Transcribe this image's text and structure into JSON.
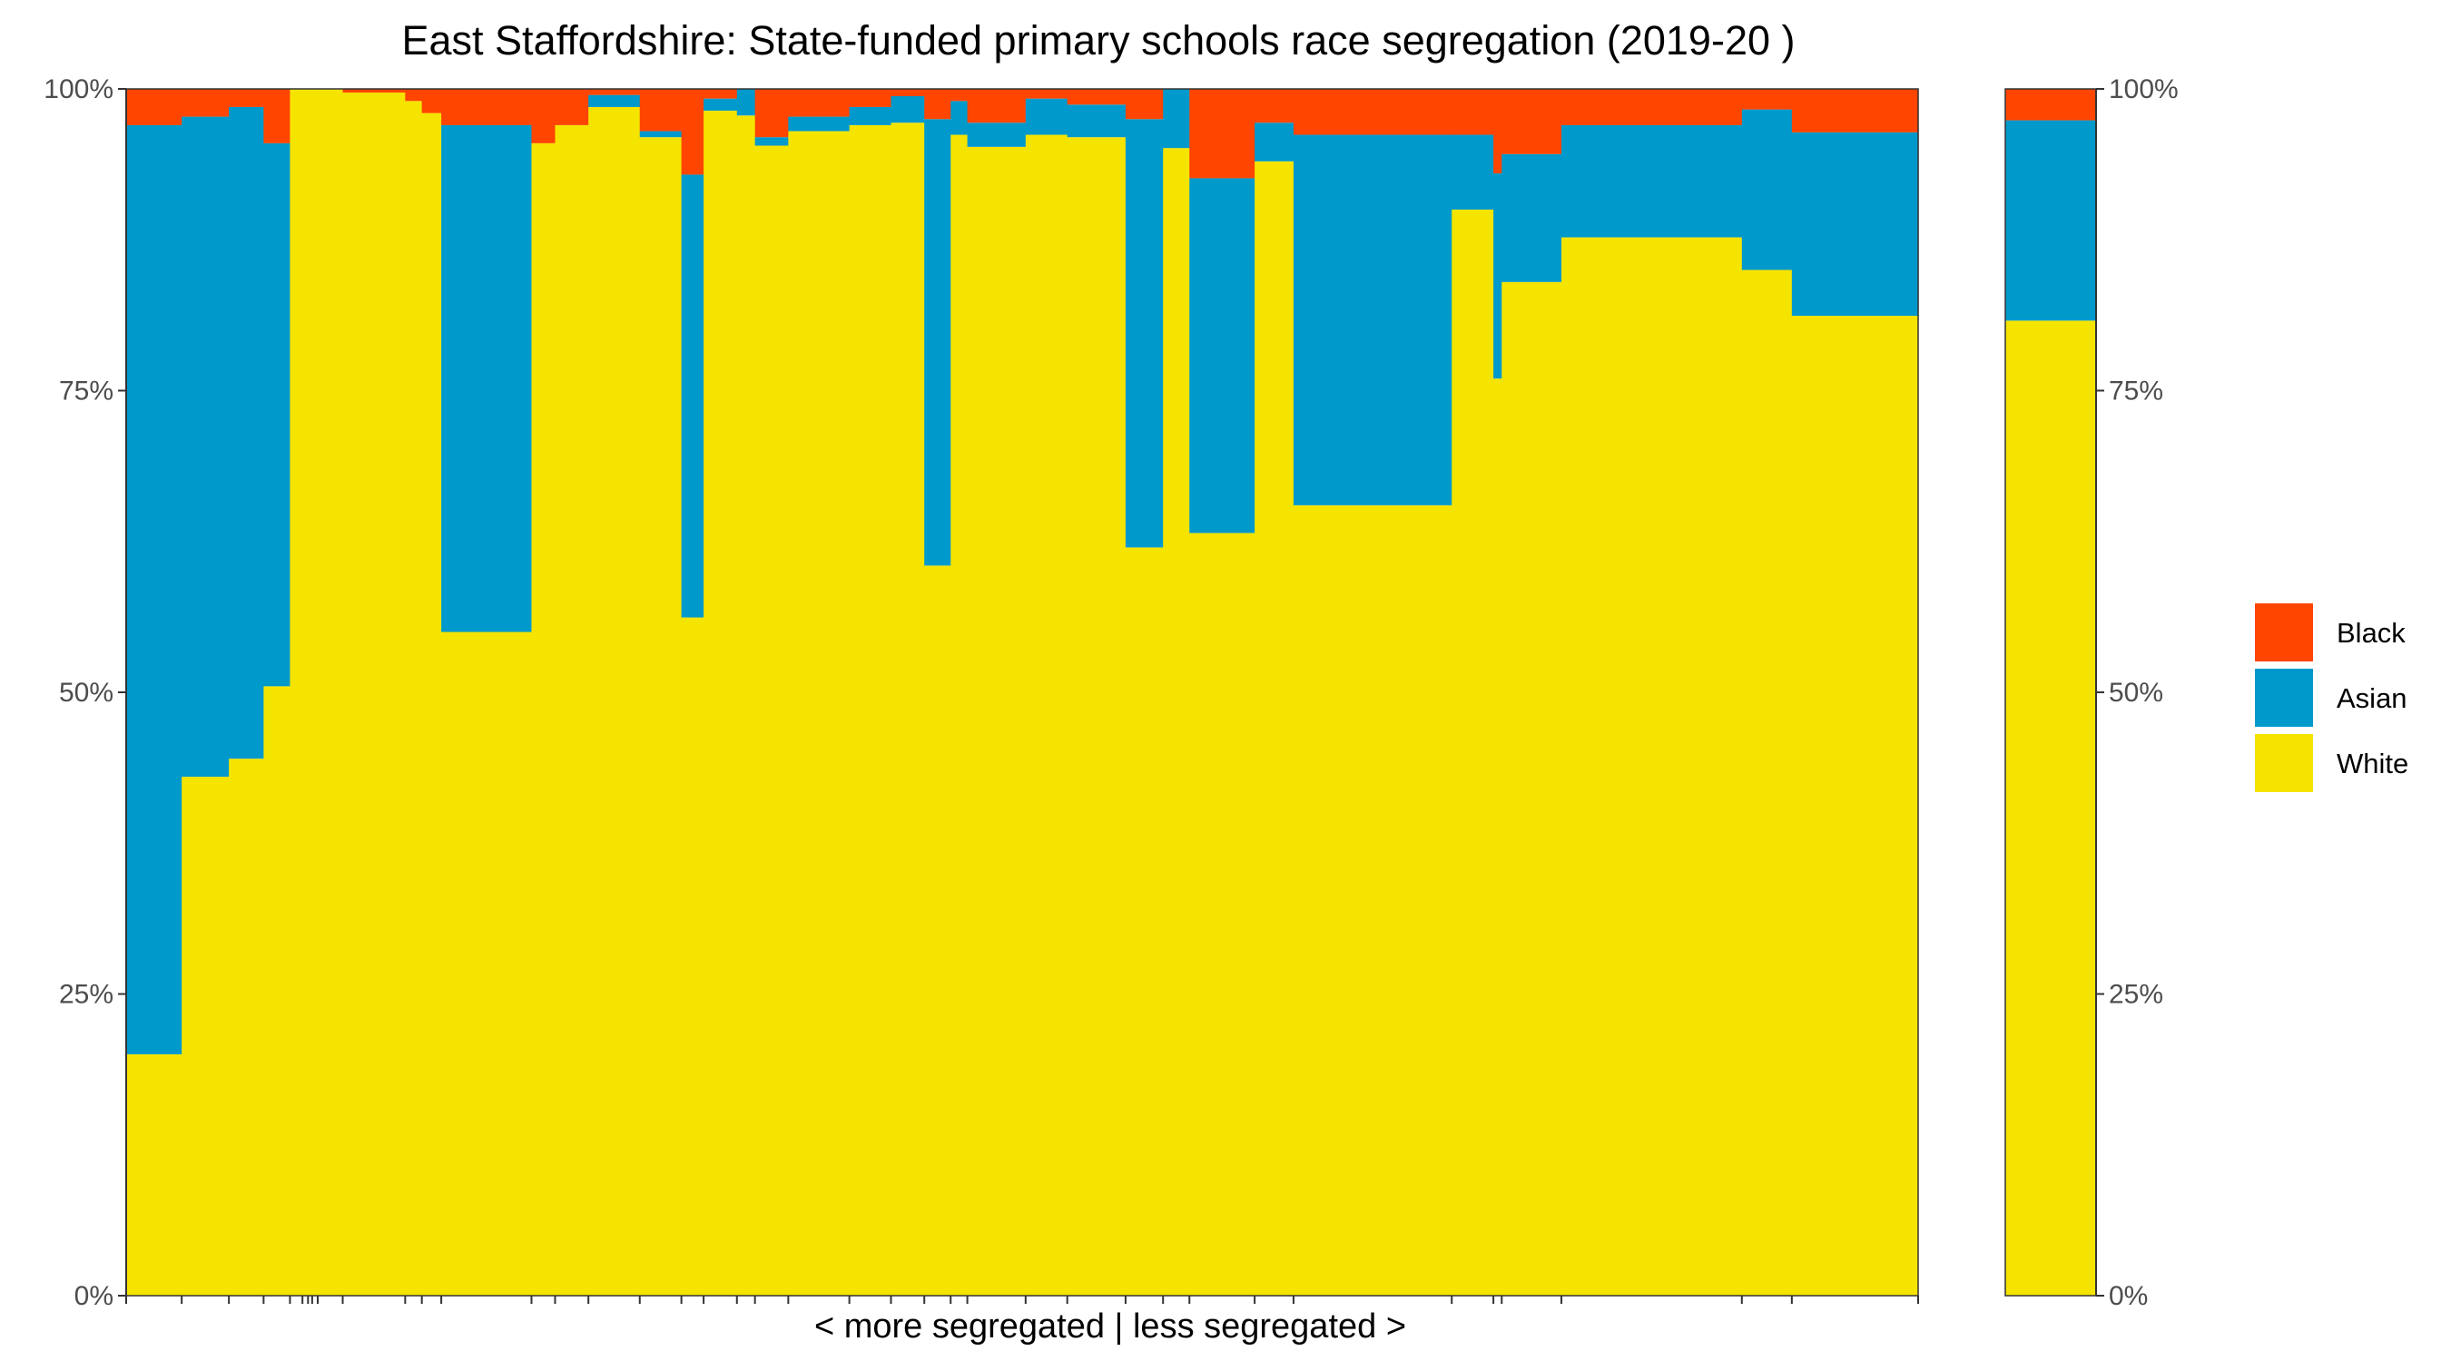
{
  "chart_data": {
    "type": "bar",
    "subtype": "stacked-100-variable-width",
    "title": "East Staffordshire: State-funded primary schools race segregation (2019-20 )",
    "xlabel": "< more segregated | less segregated >",
    "ylabel": "",
    "ylim": [
      0,
      1
    ],
    "yticks": [
      "0%",
      "25%",
      "50%",
      "75%",
      "100%"
    ],
    "grid": false,
    "legend_position": "right",
    "secondary_y_axis": true,
    "series": [
      {
        "name": "Black",
        "color": "#FF4500"
      },
      {
        "name": "Asian",
        "color": "#0099CC"
      },
      {
        "name": "White",
        "color": "#F5E400"
      }
    ],
    "schools": [
      {
        "width": 40,
        "white": 0.2,
        "asian": 0.77,
        "black": 0.03
      },
      {
        "width": 34,
        "white": 0.43,
        "asian": 0.547,
        "black": 0.023
      },
      {
        "width": 25,
        "white": 0.445,
        "asian": 0.54,
        "black": 0.015
      },
      {
        "width": 19,
        "white": 0.505,
        "asian": 0.45,
        "black": 0.045
      },
      {
        "width": 9,
        "white": 1.0,
        "asian": 0.0,
        "black": 0.0
      },
      {
        "width": 4,
        "white": 1.0,
        "asian": 0.0,
        "black": 0.0
      },
      {
        "width": 3,
        "white": 1.0,
        "asian": 0.0,
        "black": 0.0
      },
      {
        "width": 4,
        "white": 1.0,
        "asian": 0.0,
        "black": 0.0
      },
      {
        "width": 18,
        "white": 1.0,
        "asian": 0.0,
        "black": 0.0
      },
      {
        "width": 45,
        "white": 0.997,
        "asian": 0.0,
        "black": 0.003
      },
      {
        "width": 12,
        "white": 0.99,
        "asian": 0.0,
        "black": 0.01
      },
      {
        "width": 14,
        "white": 0.98,
        "asian": 0.0,
        "black": 0.02
      },
      {
        "width": 65,
        "white": 0.55,
        "asian": 0.42,
        "black": 0.03
      },
      {
        "width": 17,
        "white": 0.955,
        "asian": 0.0,
        "black": 0.045
      },
      {
        "width": 24,
        "white": 0.97,
        "asian": 0.0,
        "black": 0.03
      },
      {
        "width": 37,
        "white": 0.985,
        "asian": 0.01,
        "black": 0.005
      },
      {
        "width": 30,
        "white": 0.96,
        "asian": 0.005,
        "black": 0.035
      },
      {
        "width": 16,
        "white": 0.562,
        "asian": 0.367,
        "black": 0.071
      },
      {
        "width": 24,
        "white": 0.982,
        "asian": 0.01,
        "black": 0.008
      },
      {
        "width": 13,
        "white": 0.978,
        "asian": 0.022,
        "black": 0.0
      },
      {
        "width": 24,
        "white": 0.953,
        "asian": 0.007,
        "black": 0.04
      },
      {
        "width": 44,
        "white": 0.965,
        "asian": 0.012,
        "black": 0.023
      },
      {
        "width": 30,
        "white": 0.97,
        "asian": 0.015,
        "black": 0.015
      },
      {
        "width": 24,
        "white": 0.972,
        "asian": 0.022,
        "black": 0.006
      },
      {
        "width": 19,
        "white": 0.605,
        "asian": 0.37,
        "black": 0.025
      },
      {
        "width": 12,
        "white": 0.962,
        "asian": 0.028,
        "black": 0.01
      },
      {
        "width": 42,
        "white": 0.952,
        "asian": 0.02,
        "black": 0.028
      },
      {
        "width": 30,
        "white": 0.962,
        "asian": 0.03,
        "black": 0.008
      },
      {
        "width": 42,
        "white": 0.96,
        "asian": 0.027,
        "black": 0.013
      },
      {
        "width": 27,
        "white": 0.62,
        "asian": 0.355,
        "black": 0.025
      },
      {
        "width": 19,
        "white": 0.951,
        "asian": 0.049,
        "black": 0.0
      },
      {
        "width": 47,
        "white": 0.632,
        "asian": 0.294,
        "black": 0.074
      },
      {
        "width": 28,
        "white": 0.94,
        "asian": 0.032,
        "black": 0.028
      },
      {
        "width": 114,
        "white": 0.655,
        "asian": 0.307,
        "black": 0.038
      },
      {
        "width": 30,
        "white": 0.9,
        "asian": 0.062,
        "black": 0.038
      },
      {
        "width": 6,
        "white": 0.76,
        "asian": 0.17,
        "black": 0.07
      },
      {
        "width": 43,
        "white": 0.84,
        "asian": 0.106,
        "black": 0.054
      },
      {
        "width": 130,
        "white": 0.877,
        "asian": 0.093,
        "black": 0.03
      },
      {
        "width": 36,
        "white": 0.85,
        "asian": 0.133,
        "black": 0.017
      },
      {
        "width": 91,
        "white": 0.812,
        "asian": 0.152,
        "black": 0.036
      }
    ],
    "summary_bar": {
      "white": 0.808,
      "asian": 0.166,
      "black": 0.026
    }
  }
}
